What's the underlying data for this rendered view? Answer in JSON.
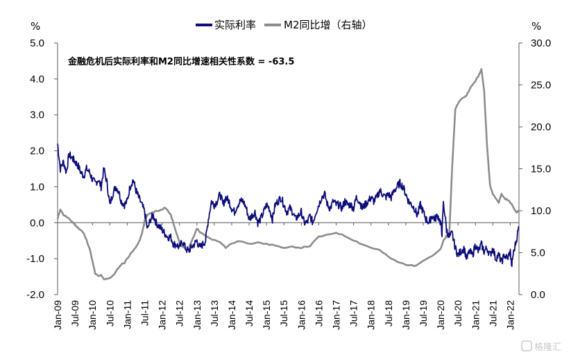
{
  "colors": {
    "real_rate": "#0c0c7a",
    "m2": "#8c8c8c",
    "axis": "#595959"
  },
  "watermark": "格隆汇",
  "chart_data": {
    "type": "line",
    "annotation": "金融危机后实际利率和M2同比增速相关性系数 =  -63.5",
    "left_unit": "%",
    "right_unit": "%",
    "left_axis": {
      "range": [
        -2.0,
        5.0
      ],
      "ticks": [
        "5.0",
        "4.0",
        "3.0",
        "2.0",
        "1.0",
        "0.0",
        "-1.0",
        "-2.0"
      ],
      "values": [
        5,
        4,
        3,
        2,
        1,
        0,
        -1,
        -2
      ]
    },
    "right_axis": {
      "range": [
        0.0,
        30.0
      ],
      "ticks": [
        "30.0",
        "25.0",
        "20.0",
        "15.0",
        "10.0",
        "5.0",
        "0.0"
      ],
      "values": [
        30,
        25,
        20,
        15,
        10,
        5,
        0
      ]
    },
    "x_labels": [
      "Jan-09",
      "Jul-09",
      "Jan-10",
      "Jul-10",
      "Jan-11",
      "Jul-11",
      "Jan-12",
      "Jul-12",
      "Jan-13",
      "Jul-13",
      "Jan-14",
      "Jul-14",
      "Jan-15",
      "Jul-15",
      "Jan-16",
      "Jul-16",
      "Jan-17",
      "Jul-17",
      "Jan-18",
      "Jul-18",
      "Jan-19",
      "Jul-19",
      "Jan-20",
      "Jul-20",
      "Jan-21",
      "Jul-21",
      "Jan-22"
    ],
    "x_range": [
      2009.0,
      2022.25
    ],
    "series": [
      {
        "name": "实际利率",
        "axis": "left",
        "x": [
          2009.0,
          2009.08,
          2009.17,
          2009.25,
          2009.33,
          2009.42,
          2009.5,
          2009.58,
          2009.67,
          2009.75,
          2009.83,
          2009.92,
          2010.0,
          2010.08,
          2010.17,
          2010.25,
          2010.33,
          2010.42,
          2010.5,
          2010.58,
          2010.67,
          2010.75,
          2010.83,
          2010.92,
          2011.0,
          2011.08,
          2011.17,
          2011.25,
          2011.33,
          2011.42,
          2011.5,
          2011.58,
          2011.67,
          2011.75,
          2011.83,
          2011.92,
          2012.0,
          2012.08,
          2012.17,
          2012.25,
          2012.33,
          2012.42,
          2012.5,
          2012.58,
          2012.67,
          2012.75,
          2012.83,
          2012.92,
          2013.0,
          2013.08,
          2013.17,
          2013.25,
          2013.33,
          2013.42,
          2013.5,
          2013.58,
          2013.67,
          2013.75,
          2013.83,
          2013.92,
          2014.0,
          2014.08,
          2014.17,
          2014.25,
          2014.33,
          2014.42,
          2014.5,
          2014.58,
          2014.67,
          2014.75,
          2014.83,
          2014.92,
          2015.0,
          2015.08,
          2015.17,
          2015.25,
          2015.33,
          2015.42,
          2015.5,
          2015.58,
          2015.67,
          2015.75,
          2015.83,
          2015.92,
          2016.0,
          2016.08,
          2016.17,
          2016.25,
          2016.33,
          2016.42,
          2016.5,
          2016.58,
          2016.67,
          2016.75,
          2016.83,
          2016.92,
          2017.0,
          2017.08,
          2017.17,
          2017.25,
          2017.33,
          2017.42,
          2017.5,
          2017.58,
          2017.67,
          2017.75,
          2017.83,
          2017.92,
          2018.0,
          2018.08,
          2018.17,
          2018.25,
          2018.33,
          2018.42,
          2018.5,
          2018.58,
          2018.67,
          2018.75,
          2018.83,
          2018.92,
          2019.0,
          2019.08,
          2019.17,
          2019.25,
          2019.33,
          2019.42,
          2019.5,
          2019.58,
          2019.67,
          2019.75,
          2019.83,
          2019.92,
          2020.0,
          2020.04,
          2020.08,
          2020.17,
          2020.25,
          2020.33,
          2020.42,
          2020.5,
          2020.58,
          2020.67,
          2020.75,
          2020.83,
          2020.92,
          2021.0,
          2021.08,
          2021.17,
          2021.25,
          2021.33,
          2021.42,
          2021.5,
          2021.58,
          2021.67,
          2021.75,
          2021.83,
          2021.92,
          2022.0,
          2022.04,
          2022.08,
          2022.17,
          2022.25
        ],
        "y": [
          2.2,
          1.5,
          1.7,
          1.4,
          1.9,
          1.8,
          1.7,
          1.6,
          1.4,
          1.3,
          1.5,
          1.4,
          1.2,
          1.1,
          1.2,
          1.0,
          1.5,
          1.1,
          0.5,
          0.8,
          1.0,
          0.9,
          0.6,
          0.5,
          0.6,
          1.0,
          1.2,
          0.9,
          0.7,
          0.5,
          0.3,
          -0.2,
          0.1,
          0.2,
          0.0,
          -0.1,
          -0.2,
          -0.3,
          -0.4,
          -0.4,
          -0.6,
          -0.6,
          -0.7,
          -0.5,
          -0.7,
          -0.8,
          -0.7,
          -0.6,
          -0.5,
          -0.7,
          -0.6,
          -0.5,
          0.1,
          0.6,
          0.5,
          0.6,
          0.8,
          0.5,
          0.7,
          0.6,
          0.4,
          0.3,
          0.5,
          0.6,
          0.6,
          0.4,
          0.1,
          0.2,
          0.3,
          0.0,
          0.1,
          0.3,
          0.5,
          0.4,
          0.1,
          0.5,
          0.6,
          0.7,
          0.5,
          0.3,
          0.4,
          0.3,
          0.1,
          0.2,
          0.3,
          0.0,
          0.0,
          0.2,
          0.0,
          0.3,
          0.5,
          0.7,
          0.8,
          0.5,
          0.4,
          0.6,
          0.5,
          0.5,
          0.4,
          0.6,
          0.5,
          0.5,
          0.4,
          0.7,
          0.6,
          0.4,
          0.5,
          0.6,
          0.7,
          0.6,
          0.7,
          0.9,
          0.8,
          0.7,
          0.8,
          0.7,
          0.9,
          1.0,
          1.1,
          1.0,
          0.8,
          0.6,
          0.5,
          0.4,
          0.2,
          0.5,
          0.3,
          0.1,
          0.0,
          0.2,
          0.1,
          0.2,
          0.0,
          -0.3,
          0.6,
          -0.2,
          -0.4,
          -0.3,
          -0.7,
          -0.9,
          -0.8,
          -0.7,
          -1.0,
          -0.8,
          -0.9,
          -0.6,
          -0.8,
          -0.6,
          -0.8,
          -0.7,
          -0.9,
          -0.7,
          -1.0,
          -0.9,
          -1.1,
          -0.9,
          -1.0,
          -0.8,
          -1.2,
          -0.9,
          -0.5,
          -0.1
        ]
      },
      {
        "name": "M2同比增（右轴）",
        "axis": "right",
        "x": [
          2009.0,
          2009.08,
          2009.17,
          2009.25,
          2009.33,
          2009.42,
          2009.5,
          2009.58,
          2009.67,
          2009.75,
          2009.83,
          2009.92,
          2010.0,
          2010.08,
          2010.17,
          2010.25,
          2010.33,
          2010.42,
          2010.5,
          2010.58,
          2010.67,
          2010.75,
          2010.83,
          2010.92,
          2011.0,
          2011.08,
          2011.17,
          2011.25,
          2011.33,
          2011.42,
          2011.5,
          2011.58,
          2011.67,
          2011.75,
          2011.83,
          2011.92,
          2012.0,
          2012.08,
          2012.17,
          2012.25,
          2012.33,
          2012.42,
          2012.5,
          2012.58,
          2012.67,
          2012.75,
          2012.83,
          2012.92,
          2013.0,
          2013.08,
          2013.17,
          2013.25,
          2013.33,
          2013.5,
          2013.67,
          2013.83,
          2014.0,
          2014.25,
          2014.5,
          2014.75,
          2015.0,
          2015.25,
          2015.5,
          2015.75,
          2016.0,
          2016.25,
          2016.5,
          2016.75,
          2017.0,
          2017.25,
          2017.5,
          2017.75,
          2018.0,
          2018.25,
          2018.5,
          2018.75,
          2019.0,
          2019.25,
          2019.5,
          2019.75,
          2020.0,
          2020.08,
          2020.17,
          2020.25,
          2020.33,
          2020.42,
          2020.5,
          2020.58,
          2020.67,
          2020.75,
          2020.83,
          2020.92,
          2021.0,
          2021.08,
          2021.17,
          2021.25,
          2021.33,
          2021.42,
          2021.5,
          2021.58,
          2021.67,
          2021.75,
          2021.83,
          2021.92,
          2022.0,
          2022.08,
          2022.17,
          2022.25
        ],
        "y": [
          9.0,
          10.2,
          9.5,
          9.3,
          9.0,
          8.7,
          8.3,
          8.0,
          7.7,
          7.3,
          6.5,
          5.5,
          4.0,
          2.5,
          2.2,
          2.3,
          1.8,
          1.9,
          2.0,
          2.2,
          2.7,
          3.2,
          3.6,
          3.8,
          4.3,
          4.8,
          5.2,
          5.7,
          6.2,
          7.2,
          8.8,
          9.5,
          9.7,
          9.8,
          10.0,
          10.0,
          10.2,
          10.3,
          10.0,
          9.5,
          8.5,
          7.2,
          6.3,
          5.8,
          5.5,
          5.3,
          6.2,
          7.0,
          7.9,
          7.5,
          7.2,
          7.0,
          6.8,
          6.5,
          6.3,
          5.6,
          6.1,
          6.4,
          6.0,
          6.3,
          6.0,
          5.9,
          5.5,
          5.7,
          5.6,
          5.8,
          6.9,
          7.1,
          7.4,
          7.0,
          6.5,
          6.0,
          5.6,
          5.3,
          4.5,
          3.9,
          3.6,
          3.4,
          4.1,
          4.6,
          5.4,
          6.4,
          7.0,
          7.3,
          15.0,
          22.0,
          22.8,
          23.3,
          23.5,
          23.8,
          24.5,
          25.0,
          25.5,
          26.0,
          26.9,
          24.4,
          18.0,
          13.0,
          12.0,
          11.5,
          11.0,
          12.0,
          11.5,
          11.3,
          11.0,
          10.5,
          9.8,
          10.0
        ]
      }
    ]
  }
}
